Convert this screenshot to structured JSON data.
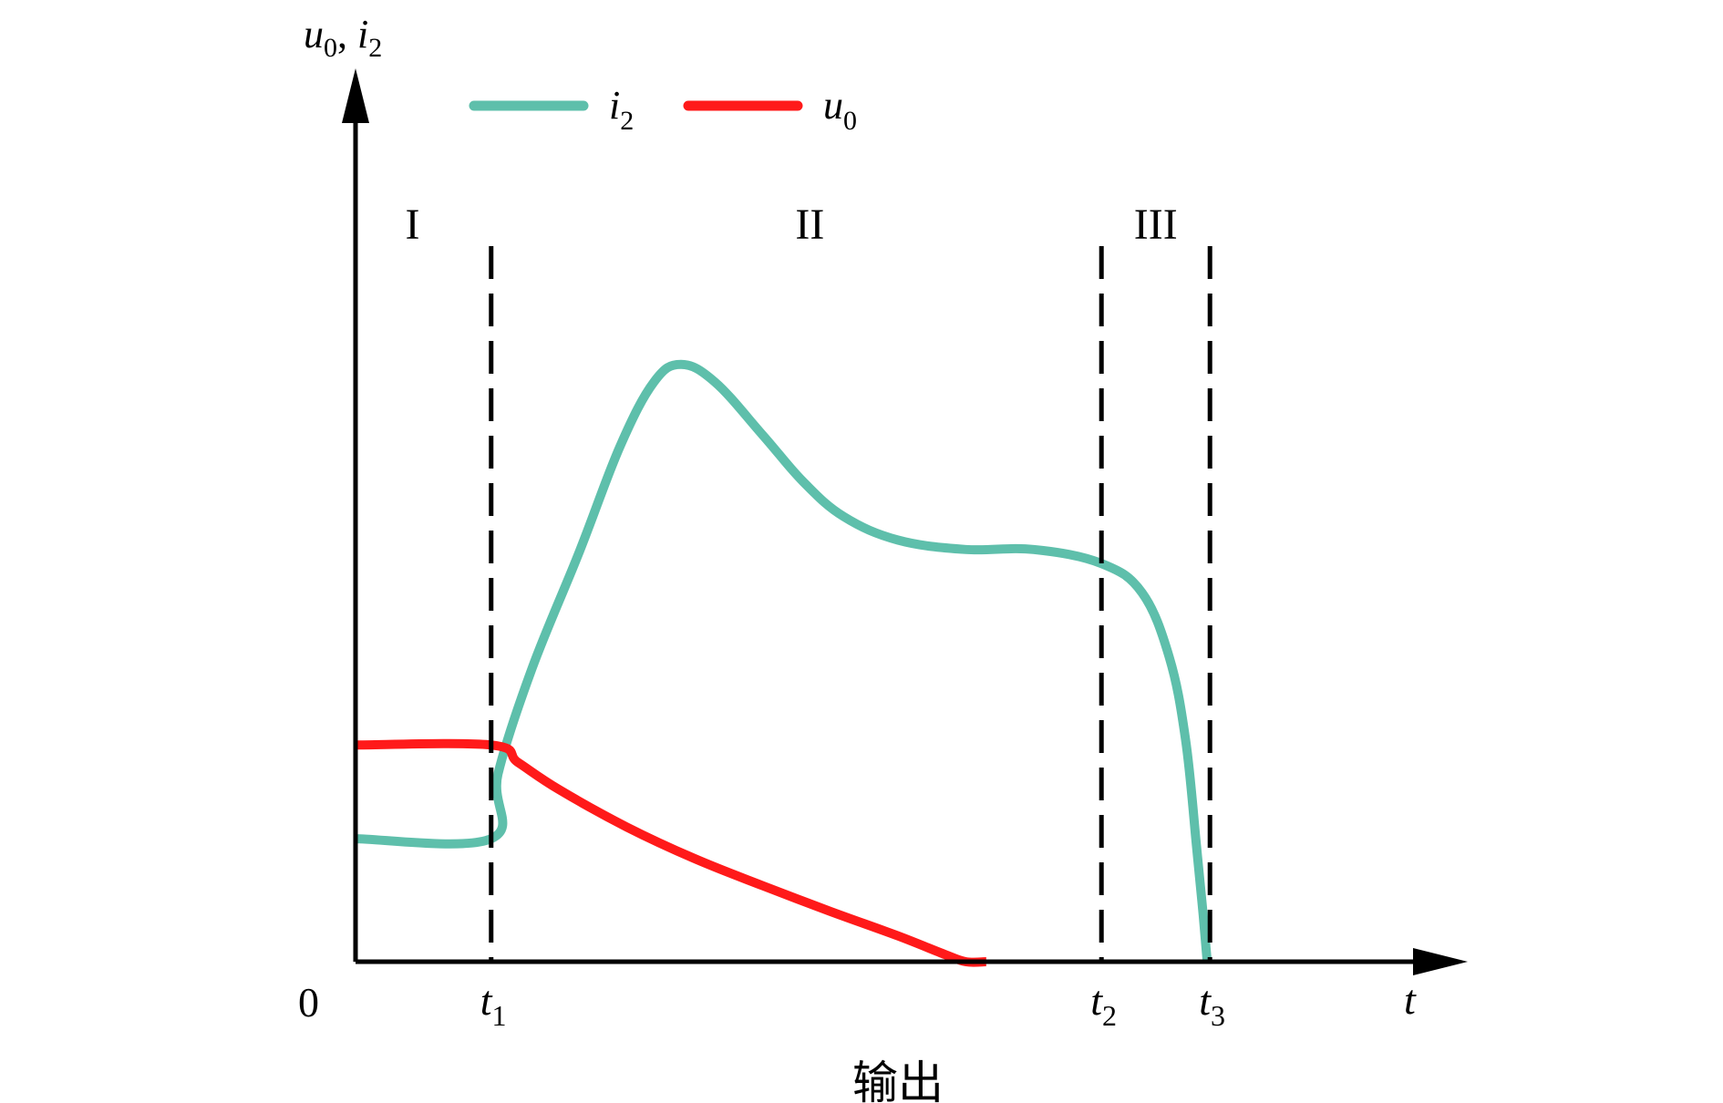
{
  "chart_data": {
    "type": "line",
    "title": "",
    "caption": "输出",
    "xlabel": "t",
    "ylabel": {
      "var1": "u",
      "sub1": "0",
      "sep": ", ",
      "var2": "i",
      "sub2": "2"
    },
    "origin_label": "0",
    "x_ticks": [
      {
        "base": "t",
        "sub": "1",
        "x": 1.0
      },
      {
        "base": "t",
        "sub": "2",
        "x": 5.5
      },
      {
        "base": "t",
        "sub": "3",
        "x": 6.3
      }
    ],
    "xlim": [
      0,
      8.1
    ],
    "ylim": [
      0,
      7.2
    ],
    "grid": false,
    "legend_position": "top",
    "regions": [
      {
        "label": "I",
        "x": 0.42
      },
      {
        "label": "II",
        "x": 3.35
      },
      {
        "label": "III",
        "x": 5.9
      }
    ],
    "series": [
      {
        "name": "i",
        "name_sub": "2",
        "color": "#5ebfab",
        "points": [
          [
            0.0,
            1.05
          ],
          [
            1.0,
            1.05
          ],
          [
            1.05,
            1.6
          ],
          [
            1.3,
            2.5
          ],
          [
            1.65,
            3.5
          ],
          [
            1.95,
            4.4
          ],
          [
            2.2,
            4.95
          ],
          [
            2.4,
            5.1
          ],
          [
            2.65,
            4.95
          ],
          [
            3.0,
            4.5
          ],
          [
            3.3,
            4.1
          ],
          [
            3.6,
            3.8
          ],
          [
            4.0,
            3.6
          ],
          [
            4.5,
            3.52
          ],
          [
            5.0,
            3.52
          ],
          [
            5.5,
            3.4
          ],
          [
            5.8,
            3.15
          ],
          [
            6.0,
            2.6
          ],
          [
            6.12,
            1.9
          ],
          [
            6.2,
            1.0
          ],
          [
            6.25,
            0.4
          ],
          [
            6.28,
            0.0
          ]
        ]
      },
      {
        "name": "u",
        "name_sub": "0",
        "color": "#ff1a1a",
        "points": [
          [
            0.0,
            1.85
          ],
          [
            1.0,
            1.85
          ],
          [
            1.2,
            1.7
          ],
          [
            1.5,
            1.47
          ],
          [
            2.0,
            1.15
          ],
          [
            2.5,
            0.88
          ],
          [
            3.0,
            0.65
          ],
          [
            3.5,
            0.43
          ],
          [
            4.0,
            0.22
          ],
          [
            4.35,
            0.06
          ],
          [
            4.5,
            0.0
          ],
          [
            4.65,
            0.0
          ]
        ]
      }
    ]
  }
}
